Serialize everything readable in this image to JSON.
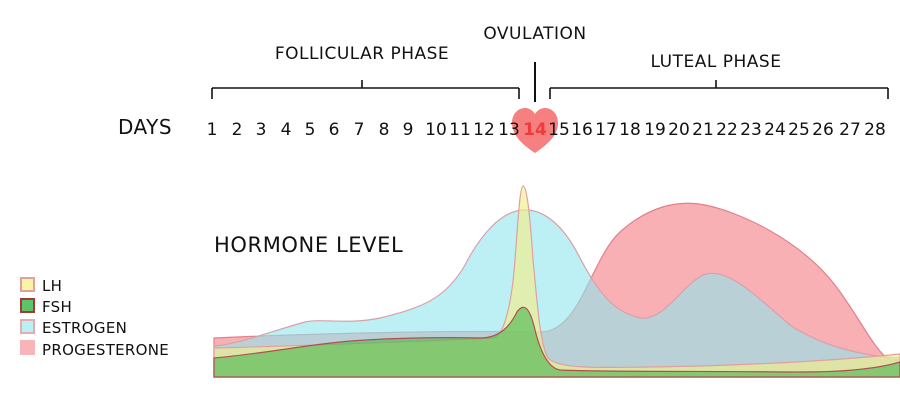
{
  "phases": {
    "follicular": "FOLLICULAR PHASE",
    "ovulation": "OVULATION",
    "luteal": "LUTEAL PHASE"
  },
  "days": {
    "title": "DAYS",
    "numbers": [
      "1",
      "2",
      "3",
      "4",
      "5",
      "6",
      "7",
      "8",
      "9",
      "10",
      "11",
      "12",
      "13",
      "14",
      "15",
      "16",
      "17",
      "18",
      "19",
      "20",
      "21",
      "22",
      "23",
      "24",
      "25",
      "26",
      "27",
      "28"
    ],
    "highlight_day": "14",
    "highlight_color": "#ef3b3b"
  },
  "hormone_title": "HORMONE LEVEL",
  "legend": [
    {
      "label": "LH",
      "fill": "#fbf3a6",
      "stroke": "#e0a0a0"
    },
    {
      "label": "FSH",
      "fill": "#5ec46a",
      "stroke": "#a33a3a"
    },
    {
      "label": "ESTROGEN",
      "fill": "#b8f0f4",
      "stroke": "#e6aab0"
    },
    {
      "label": "PROGESTERONE",
      "fill": "#f7b5b8",
      "stroke": "#f7b5b8"
    }
  ],
  "hormone_colors": {
    "progesterone": "#f47c84",
    "estrogen": "#8fe6ee",
    "lh": "#f3ed8a",
    "fsh": "#47b84f",
    "outline": "#c98a8a"
  }
}
